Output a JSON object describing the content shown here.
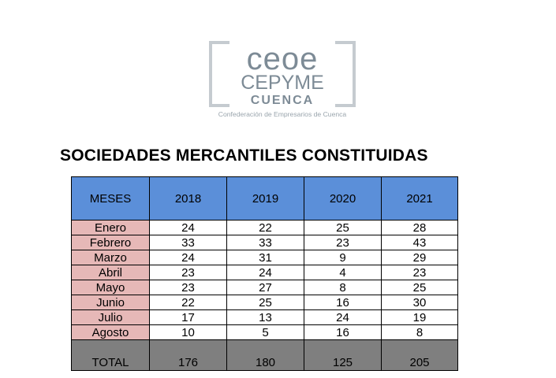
{
  "logo": {
    "line1": "ceoe",
    "line2": "CEPYME",
    "line3": "CUENCA",
    "tagline": "Confederación de Empresarios de Cuenca",
    "color_dark": "#7d8b96",
    "color_light": "#c5cbd0"
  },
  "title": "SOCIEDADES MERCANTILES CONSTITUIDAS",
  "table": {
    "header": [
      "MESES",
      "2018",
      "2019",
      "2020",
      "2021"
    ],
    "rows": [
      [
        "Enero",
        "24",
        "22",
        "25",
        "28"
      ],
      [
        "Febrero",
        "33",
        "33",
        "23",
        "43"
      ],
      [
        "Marzo",
        "24",
        "31",
        "9",
        "29"
      ],
      [
        "Abril",
        "23",
        "24",
        "4",
        "23"
      ],
      [
        "Mayo",
        "23",
        "27",
        "8",
        "25"
      ],
      [
        "Junio",
        "22",
        "25",
        "16",
        "30"
      ],
      [
        "Julio",
        "17",
        "13",
        "24",
        "19"
      ],
      [
        "Agosto",
        "10",
        "5",
        "16",
        "8"
      ]
    ],
    "total": [
      "TOTAL",
      "176",
      "180",
      "125",
      "205"
    ],
    "colors": {
      "header_bg": "#5b8fd9",
      "month_bg": "#e6b8b7",
      "total_bg": "#7f7f7f"
    }
  }
}
